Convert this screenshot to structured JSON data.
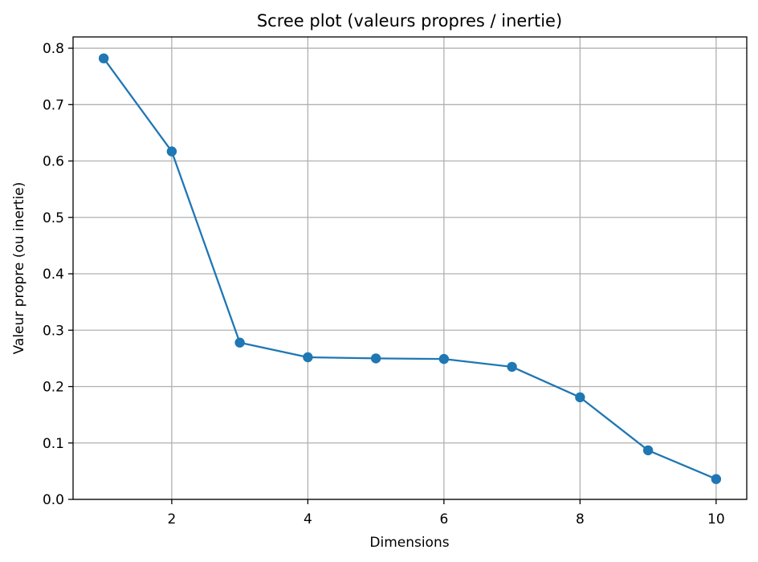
{
  "chart_data": {
    "type": "line",
    "title": "Scree plot (valeurs propres / inertie)",
    "xlabel": "Dimensions",
    "ylabel": "Valeur propre (ou inertie)",
    "x": [
      1,
      2,
      3,
      4,
      5,
      6,
      7,
      8,
      9,
      10
    ],
    "series": [
      {
        "values": [
          0.782,
          0.617,
          0.278,
          0.252,
          0.25,
          0.249,
          0.235,
          0.181,
          0.087,
          0.036
        ],
        "color": "#1f77b4",
        "marker": "circle"
      }
    ],
    "xlim": [
      0.55,
      10.45
    ],
    "ylim": [
      0.0,
      0.82
    ],
    "xticks": [
      2,
      4,
      6,
      8,
      10
    ],
    "xtick_labels": [
      "2",
      "4",
      "6",
      "8",
      "10"
    ],
    "yticks": [
      0.0,
      0.1,
      0.2,
      0.3,
      0.4,
      0.5,
      0.6,
      0.7,
      0.8
    ],
    "ytick_labels": [
      "0.0",
      "0.1",
      "0.2",
      "0.3",
      "0.4",
      "0.5",
      "0.6",
      "0.7",
      "0.8"
    ],
    "grid": true,
    "grid_color": "#b0b0b0",
    "legend": "none"
  }
}
